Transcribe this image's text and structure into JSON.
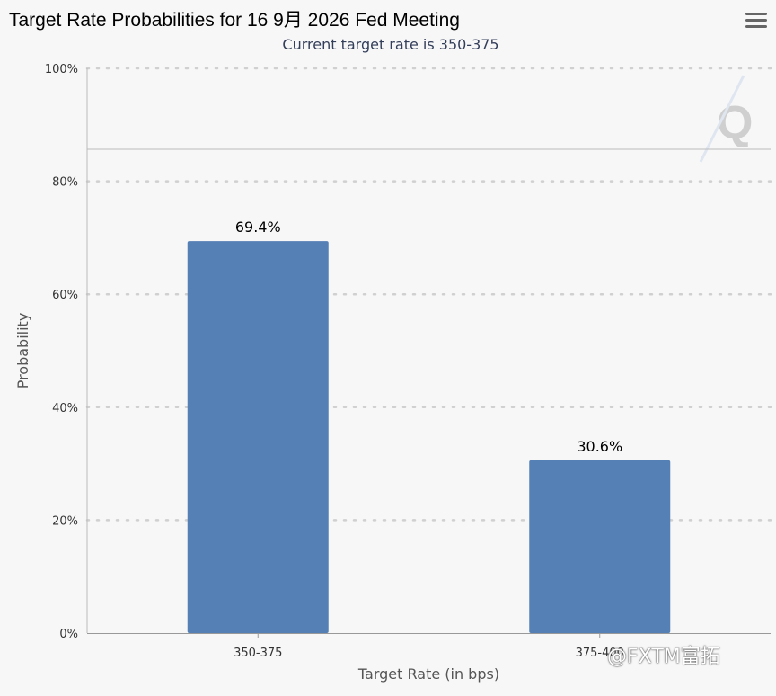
{
  "header": {
    "title": "Target Rate Probabilities for 16 9月 2026 Fed Meeting",
    "subtitle": "Current target rate is 350-375",
    "menu_icon": "hamburger-menu-icon"
  },
  "watermark": {
    "text": "@FXTM富拓"
  },
  "colors": {
    "bar": "#5580b5",
    "grid": "#d0d0d0",
    "axis": "#bbbbbb",
    "text": "#333333"
  },
  "chart_data": {
    "type": "bar",
    "categories": [
      "350-375",
      "375-400"
    ],
    "values": [
      69.4,
      30.6
    ],
    "data_labels": [
      "69.4%",
      "30.6%"
    ],
    "xlabel": "Target Rate (in bps)",
    "ylabel": "Probability",
    "ylim": [
      0,
      100
    ],
    "yticks": [
      "0%",
      "20%",
      "40%",
      "60%",
      "80%",
      "100%"
    ],
    "ytick_values": [
      0,
      20,
      40,
      60,
      80,
      100
    ],
    "grid": true
  }
}
